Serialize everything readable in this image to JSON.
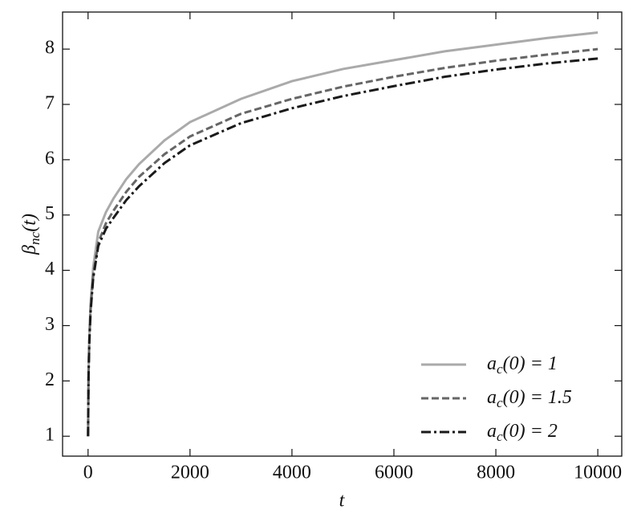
{
  "chart_data": {
    "type": "line",
    "xlabel": "t",
    "ylabel": "βnc(t)",
    "x": [
      0,
      10,
      25,
      50,
      100,
      200,
      350,
      500,
      750,
      1000,
      1500,
      2000,
      3000,
      4000,
      5000,
      6000,
      7000,
      8000,
      9000,
      10000
    ],
    "series": [
      {
        "name": "ac(0) = 1",
        "color": "#aaaaaa",
        "dash": "solid",
        "values": [
          1,
          2.2,
          2.8,
          3.4,
          4.05,
          4.7,
          5.05,
          5.3,
          5.65,
          5.92,
          6.35,
          6.68,
          7.1,
          7.42,
          7.64,
          7.8,
          7.96,
          8.08,
          8.2,
          8.3
        ]
      },
      {
        "name": "ac(0) = 1.5",
        "color": "#666666",
        "dash": "dashed",
        "values": [
          1,
          2.15,
          2.75,
          3.3,
          3.9,
          4.5,
          4.85,
          5.08,
          5.42,
          5.69,
          6.1,
          6.42,
          6.83,
          7.1,
          7.32,
          7.5,
          7.66,
          7.79,
          7.9,
          8.0
        ]
      },
      {
        "name": "ac(0) = 2",
        "color": "#1a1a1a",
        "dash": "dashdot",
        "values": [
          1,
          2.1,
          2.7,
          3.25,
          3.85,
          4.44,
          4.75,
          4.95,
          5.27,
          5.52,
          5.94,
          6.26,
          6.66,
          6.93,
          7.15,
          7.33,
          7.5,
          7.63,
          7.74,
          7.83
        ]
      }
    ],
    "xlim": [
      -500,
      10470
    ],
    "ylim": [
      0.64,
      8.67
    ],
    "xticks": [
      0,
      2000,
      4000,
      6000,
      8000,
      10000
    ],
    "yticks": [
      1,
      2,
      3,
      4,
      5,
      6,
      7,
      8
    ],
    "legend": "lower right"
  }
}
